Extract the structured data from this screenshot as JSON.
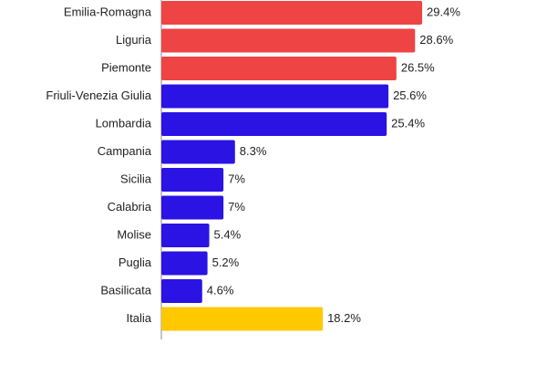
{
  "chart_data": {
    "type": "barh",
    "categories": [
      "Emilia-Romagna",
      "Liguria",
      "Piemonte",
      "Friuli-Venezia Giulia",
      "Lombardia",
      "Campania",
      "Sicilia",
      "Calabria",
      "Molise",
      "Puglia",
      "Basilicata",
      "Italia"
    ],
    "values": [
      29.4,
      28.6,
      26.5,
      25.6,
      25.4,
      8.3,
      7,
      7,
      5.4,
      5.2,
      4.6,
      18.2
    ],
    "value_labels": [
      "29.4%",
      "28.6%",
      "26.5%",
      "25.6%",
      "25.4%",
      "8.3%",
      "7%",
      "7%",
      "5.4%",
      "5.2%",
      "4.6%",
      "18.2%"
    ],
    "colors": [
      "#ee4444",
      "#ee4444",
      "#ee4444",
      "#2b13e4",
      "#2b13e4",
      "#2b13e4",
      "#2b13e4",
      "#2b13e4",
      "#2b13e4",
      "#2b13e4",
      "#2b13e4",
      "#ffc800"
    ]
  }
}
